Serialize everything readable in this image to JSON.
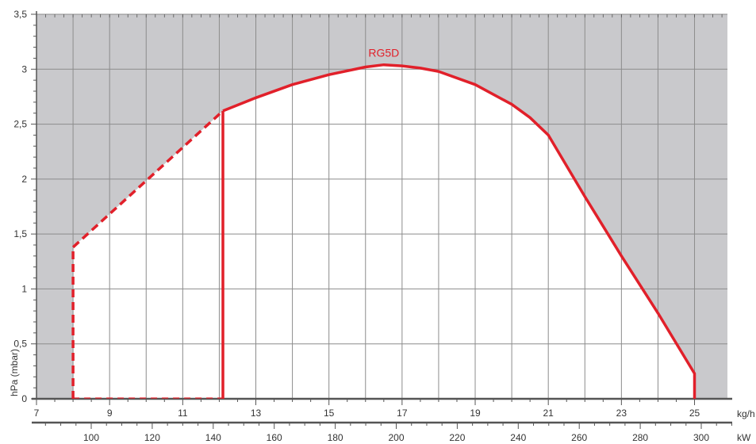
{
  "chart_data": {
    "type": "area",
    "series": [
      {
        "name": "RG5D",
        "color": "#e1202a",
        "dashed_segments": [
          {
            "kg_h": [
              8,
              8
            ],
            "mbar": [
              0,
              1.38
            ]
          },
          {
            "kg_h": [
              8,
              12.1
            ],
            "mbar": [
              1.38,
              2.62
            ]
          }
        ],
        "solid_segments": [
          {
            "kg_h": [
              12.1,
              12.1
            ],
            "mbar": [
              0,
              2.62
            ]
          },
          {
            "kg_h": [
              12.1,
              13,
              14,
              15,
              16,
              16.5,
              17,
              17.5,
              18,
              19,
              20,
              20.5,
              21,
              22,
              23,
              24,
              25,
              25
            ],
            "mbar": [
              2.62,
              2.74,
              2.86,
              2.95,
              3.02,
              3.04,
              3.03,
              3.01,
              2.98,
              2.86,
              2.68,
              2.56,
              2.4,
              1.84,
              1.3,
              0.78,
              0.23,
              0
            ]
          }
        ]
      }
    ],
    "ylabel": "hPa (mbar)",
    "ylim": [
      0,
      3.5
    ],
    "y_ticks": [
      "0",
      "0,5",
      "1",
      "1,5",
      "2",
      "2,5",
      "3",
      "3,5"
    ],
    "x_primary": {
      "unit": "kg/h",
      "range": [
        7,
        25.9
      ],
      "ticks": [
        "7",
        "9",
        "11",
        "13",
        "15",
        "17",
        "19",
        "21",
        "23",
        "25"
      ]
    },
    "x_secondary": {
      "unit": "kW",
      "ticks": [
        "100",
        "120",
        "140",
        "160",
        "180",
        "200",
        "220",
        "240",
        "260",
        "280",
        "300"
      ]
    },
    "grid": true,
    "colors": {
      "outside_area": "#c9c9cc",
      "inside_area": "#ffffff",
      "grid": "#8c8c8c",
      "axis": "#555555",
      "curve": "#e1202a"
    }
  }
}
